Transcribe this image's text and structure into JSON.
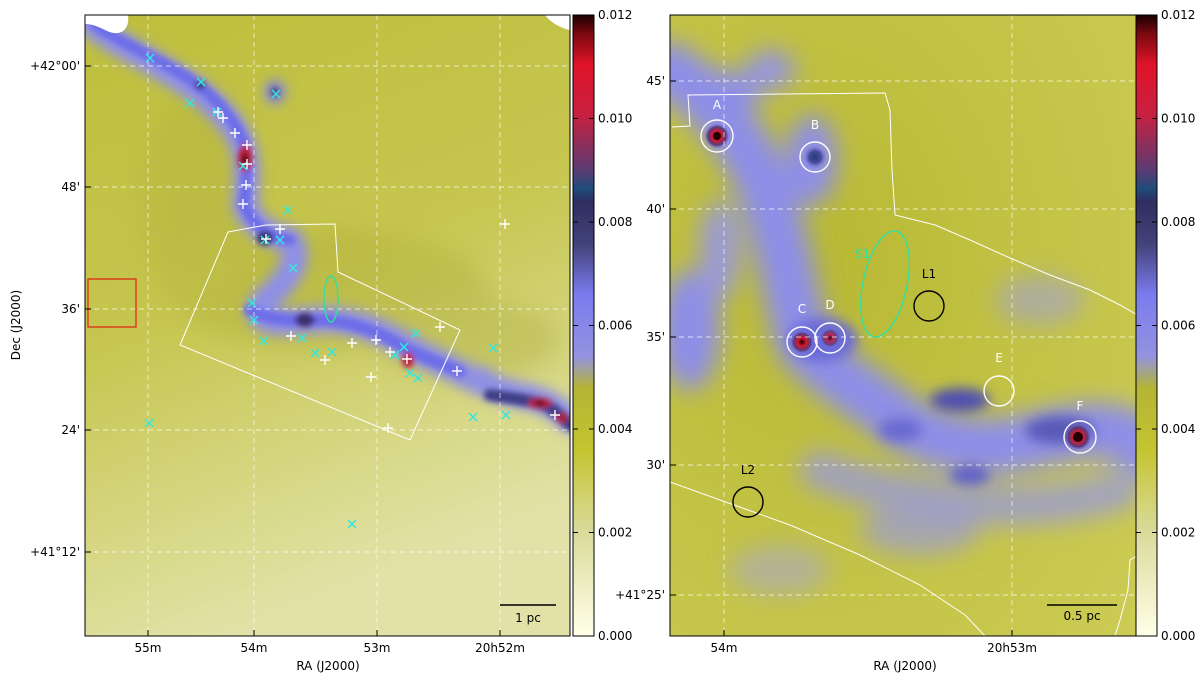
{
  "chart_data": [
    {
      "type": "heatmap",
      "panel": "left",
      "xlabel": "RA (J2000)",
      "ylabel": "Dec (J2000)",
      "x_ticks": [
        "55m",
        "54m",
        "53m",
        "20h52m"
      ],
      "y_ticks": [
        "+42°00'",
        "48'",
        "36'",
        "24'",
        "+41°12'"
      ],
      "colorbar": {
        "min": 0.0,
        "max": 0.012,
        "ticks": [
          "0.012",
          "0.010",
          "0.008",
          "0.006",
          "0.004",
          "0.002",
          "0.000"
        ],
        "colors": [
          "#ffffe8",
          "#dada9a",
          "#c4c430",
          "#b4b436",
          "#9393e0",
          "#7b7bee",
          "#43437c",
          "#2e2e60",
          "#1f4c7a",
          "#5b3b73",
          "#c82040",
          "#e01428",
          "#7a0810",
          "#1a0000"
        ]
      },
      "scalebar": "1 pc",
      "markers_cyan_label": "cyan x",
      "markers_white_label": "white +"
    },
    {
      "type": "heatmap",
      "panel": "right",
      "xlabel": "RA (J2000)",
      "x_ticks": [
        "54m",
        "20h53m"
      ],
      "y_ticks": [
        "45'",
        "40'",
        "35'",
        "30'",
        "+41°25'"
      ],
      "colorbar": {
        "min": 0.0,
        "max": 0.012,
        "ticks": [
          "0.012",
          "0.010",
          "0.008",
          "0.006",
          "0.004",
          "0.002",
          "0.000"
        ]
      },
      "scalebar": "0.5 pc",
      "sources": [
        "A",
        "B",
        "C",
        "D",
        "E",
        "F"
      ],
      "reference_regions": [
        "L1",
        "L2"
      ],
      "ellipse_label": "S1"
    }
  ]
}
